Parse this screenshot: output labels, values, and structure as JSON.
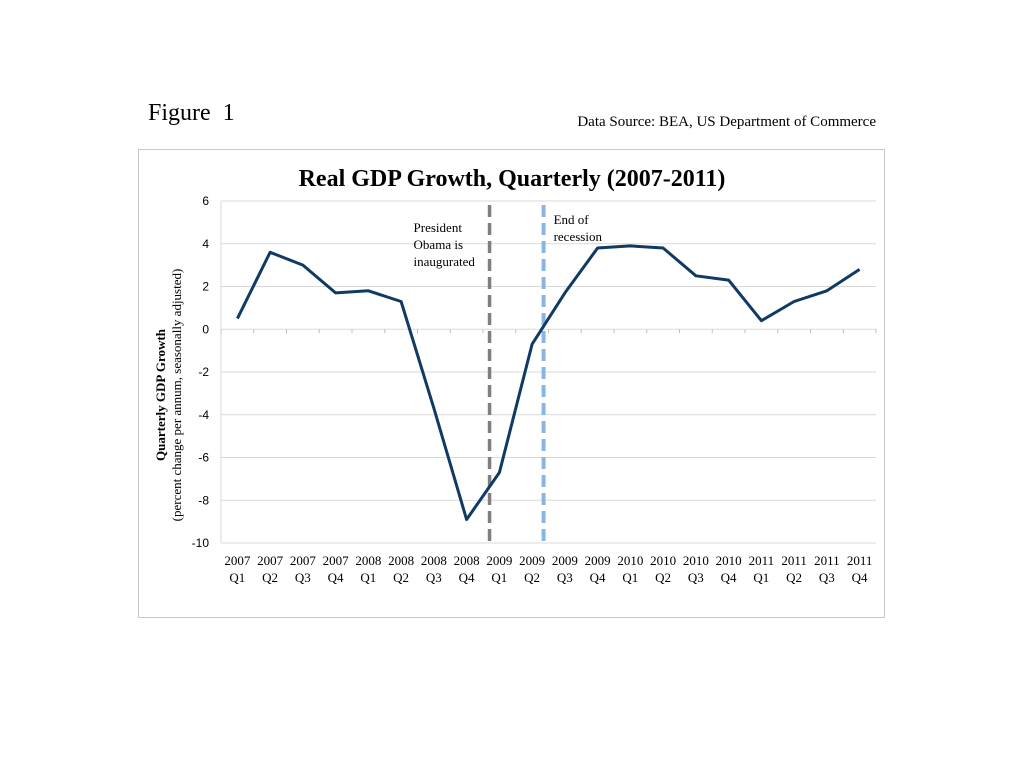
{
  "figure_label": "Figure  1",
  "source": "Data Source: BEA, US Department of Commerce",
  "colors": {
    "series": "#0f3a63",
    "inauguration": "#7f7f7f",
    "recession": "#8db3e2",
    "grid": "#d9d9d9"
  },
  "chart_data": {
    "type": "line",
    "title": "Real GDP Growth, Quarterly (2007-2011)",
    "ylabel": "Quarterly GDP Growth",
    "ylabel_sub": "(percent change per annum, seasonally adjusted)",
    "ylim": [
      -10,
      6
    ],
    "yticks": [
      6,
      4,
      2,
      0,
      -2,
      -4,
      -6,
      -8,
      -10
    ],
    "grid": true,
    "categories": [
      [
        "2007",
        "Q1"
      ],
      [
        "2007",
        "Q2"
      ],
      [
        "2007",
        "Q3"
      ],
      [
        "2007",
        "Q4"
      ],
      [
        "2008",
        "Q1"
      ],
      [
        "2008",
        "Q2"
      ],
      [
        "2008",
        "Q3"
      ],
      [
        "2008",
        "Q4"
      ],
      [
        "2009",
        "Q1"
      ],
      [
        "2009",
        "Q2"
      ],
      [
        "2009",
        "Q3"
      ],
      [
        "2009",
        "Q4"
      ],
      [
        "2010",
        "Q1"
      ],
      [
        "2010",
        "Q2"
      ],
      [
        "2010",
        "Q3"
      ],
      [
        "2010",
        "Q4"
      ],
      [
        "2011",
        "Q1"
      ],
      [
        "2011",
        "Q2"
      ],
      [
        "2011",
        "Q3"
      ],
      [
        "2011",
        "Q4"
      ]
    ],
    "values": [
      0.5,
      3.6,
      3.0,
      1.7,
      1.8,
      1.3,
      -3.7,
      -8.9,
      -6.7,
      -0.7,
      1.7,
      3.8,
      3.9,
      3.8,
      2.5,
      2.3,
      0.4,
      1.3,
      1.8,
      2.8
    ],
    "annotations": [
      {
        "lines": [
          "President",
          "Obama is",
          "inaugurated"
        ],
        "after_index": 7.7,
        "style": "grey-dashed"
      },
      {
        "lines": [
          "End of",
          "recession"
        ],
        "after_index": 9.35,
        "style": "blue-dashed"
      }
    ]
  }
}
